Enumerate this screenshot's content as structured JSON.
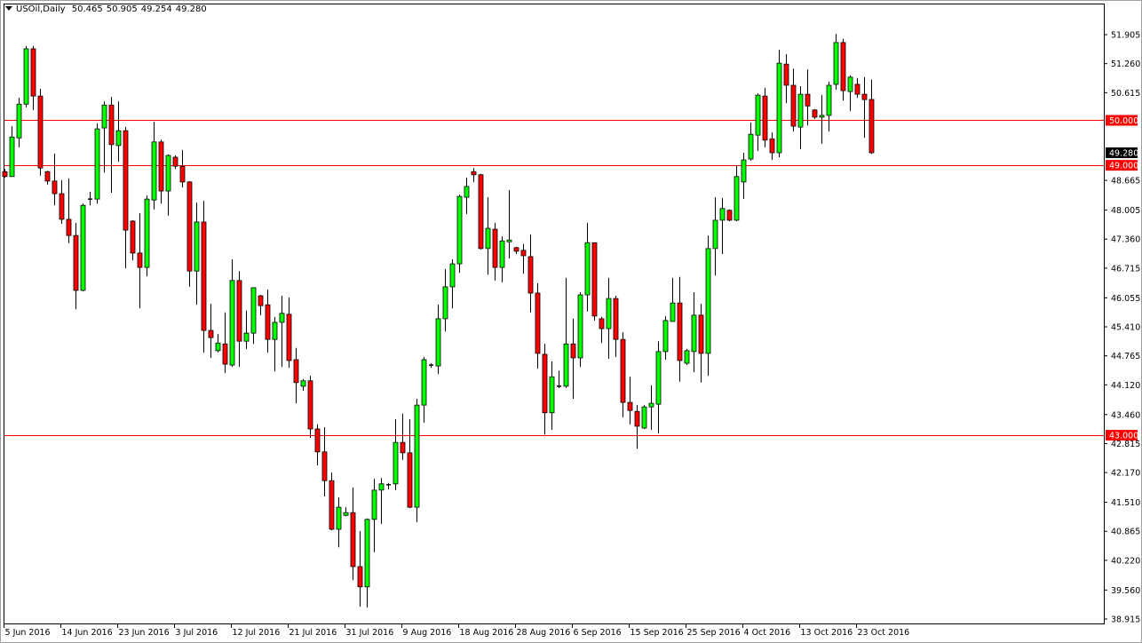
{
  "header": {
    "symbol": "USOil,Daily",
    "open": "50.465",
    "high": "50.905",
    "low": "49.254",
    "close": "49.280"
  },
  "colors": {
    "bull": "#00ff00",
    "bear": "#ff0000",
    "wick": "#000000",
    "level_line": "#ff0000",
    "level_label_bg": "#ff0000",
    "current_label_bg": "#000000"
  },
  "chart_data": {
    "type": "candlestick",
    "title": "USOil,Daily",
    "ylim": [
      38.915,
      51.905
    ],
    "grid": false,
    "y_ticks": [
      "51.905",
      "51.260",
      "50.615",
      "48.665",
      "48.005",
      "47.360",
      "46.715",
      "46.055",
      "45.410",
      "44.765",
      "44.120",
      "43.460",
      "42.815",
      "42.170",
      "41.510",
      "40.865",
      "40.220",
      "39.560",
      "38.915"
    ],
    "x_ticks": [
      {
        "bar": 0,
        "label": "5 Jun 2016"
      },
      {
        "bar": 8,
        "label": "14 Jun 2016"
      },
      {
        "bar": 16,
        "label": "23 Jun 2016"
      },
      {
        "bar": 24,
        "label": "3 Jul 2016"
      },
      {
        "bar": 32,
        "label": "12 Jul 2016"
      },
      {
        "bar": 40,
        "label": "21 Jul 2016"
      },
      {
        "bar": 48,
        "label": "31 Jul 2016"
      },
      {
        "bar": 56,
        "label": "9 Aug 2016"
      },
      {
        "bar": 64,
        "label": "18 Aug 2016"
      },
      {
        "bar": 72,
        "label": "28 Aug 2016"
      },
      {
        "bar": 80,
        "label": "6 Sep 2016"
      },
      {
        "bar": 88,
        "label": "15 Sep 2016"
      },
      {
        "bar": 96,
        "label": "25 Sep 2016"
      },
      {
        "bar": 104,
        "label": "4 Oct 2016"
      },
      {
        "bar": 112,
        "label": "13 Oct 2016"
      },
      {
        "bar": 120,
        "label": "23 Oct 2016"
      }
    ],
    "levels": [
      {
        "value": 50.0,
        "label": "50.000"
      },
      {
        "value": 49.0,
        "label": "49.000"
      },
      {
        "value": 43.0,
        "label": "43.000"
      }
    ],
    "current_price": {
      "value": 49.28,
      "label": "49.280"
    },
    "ohlc": [
      [
        48.86,
        48.92,
        48.73,
        48.75
      ],
      [
        48.75,
        49.87,
        48.75,
        49.63
      ],
      [
        49.61,
        50.5,
        49.4,
        50.36
      ],
      [
        50.36,
        51.65,
        50.29,
        51.59
      ],
      [
        51.59,
        51.65,
        50.23,
        50.54
      ],
      [
        50.54,
        50.7,
        48.77,
        48.94
      ],
      [
        48.86,
        48.88,
        48.57,
        48.65
      ],
      [
        48.65,
        49.26,
        48.11,
        48.37
      ],
      [
        48.37,
        48.67,
        47.7,
        47.8
      ],
      [
        47.8,
        48.71,
        47.27,
        47.44
      ],
      [
        47.44,
        47.72,
        45.8,
        46.22
      ],
      [
        46.22,
        48.15,
        46.2,
        48.11
      ],
      [
        48.25,
        48.41,
        48.11,
        48.25
      ],
      [
        48.25,
        49.93,
        48.15,
        49.81
      ],
      [
        49.83,
        50.42,
        48.84,
        50.34
      ],
      [
        50.34,
        50.52,
        48.39,
        49.46
      ],
      [
        49.44,
        50.42,
        49.08,
        49.77
      ],
      [
        49.77,
        49.85,
        46.71,
        47.56
      ],
      [
        47.76,
        47.78,
        46.89,
        47.05
      ],
      [
        47.05,
        47.94,
        45.82,
        46.73
      ],
      [
        46.73,
        48.33,
        46.53,
        48.25
      ],
      [
        48.23,
        49.97,
        48.02,
        49.52
      ],
      [
        49.52,
        49.57,
        48.15,
        48.43
      ],
      [
        48.43,
        49.24,
        47.88,
        49.22
      ],
      [
        49.18,
        49.22,
        48.92,
        48.98
      ],
      [
        48.98,
        49.34,
        48.51,
        48.63
      ],
      [
        48.63,
        48.65,
        46.3,
        46.65
      ],
      [
        46.65,
        48.17,
        45.9,
        47.74
      ],
      [
        47.74,
        48.21,
        44.84,
        45.33
      ],
      [
        45.33,
        45.92,
        44.72,
        45.17
      ],
      [
        44.88,
        45.25,
        44.84,
        45.05
      ],
      [
        45.03,
        45.73,
        44.38,
        44.58
      ],
      [
        44.56,
        46.91,
        44.52,
        46.44
      ],
      [
        46.44,
        46.65,
        44.52,
        45.09
      ],
      [
        45.09,
        45.77,
        44.92,
        45.27
      ],
      [
        45.27,
        46.28,
        45.03,
        46.28
      ],
      [
        46.1,
        46.12,
        45.67,
        45.88
      ],
      [
        45.9,
        46.24,
        44.84,
        45.13
      ],
      [
        45.13,
        45.63,
        44.42,
        45.51
      ],
      [
        45.51,
        46.1,
        44.52,
        45.71
      ],
      [
        45.69,
        46.06,
        44.5,
        44.66
      ],
      [
        44.68,
        44.94,
        43.71,
        44.17
      ],
      [
        44.09,
        44.25,
        43.99,
        44.21
      ],
      [
        44.21,
        44.32,
        42.94,
        43.14
      ],
      [
        43.14,
        43.24,
        42.33,
        42.63
      ],
      [
        42.63,
        43.18,
        41.64,
        41.99
      ],
      [
        41.99,
        42.17,
        40.89,
        40.91
      ],
      [
        40.91,
        41.62,
        40.51,
        41.4
      ],
      [
        41.22,
        41.4,
        41.2,
        41.28
      ],
      [
        41.28,
        41.84,
        39.78,
        40.08
      ],
      [
        40.08,
        40.87,
        39.19,
        39.63
      ],
      [
        39.63,
        41.15,
        39.17,
        41.13
      ],
      [
        41.13,
        42.03,
        40.4,
        41.78
      ],
      [
        41.78,
        42.05,
        41.03,
        41.92
      ],
      [
        41.9,
        41.94,
        41.8,
        41.9
      ],
      [
        41.92,
        43.36,
        41.78,
        42.84
      ],
      [
        42.84,
        43.48,
        42.45,
        42.61
      ],
      [
        42.61,
        43.36,
        41.38,
        41.4
      ],
      [
        41.4,
        43.81,
        41.07,
        43.67
      ],
      [
        43.67,
        44.74,
        43.28,
        44.68
      ],
      [
        44.56,
        44.6,
        44.5,
        44.56
      ],
      [
        44.54,
        45.9,
        44.36,
        45.59
      ],
      [
        45.59,
        46.69,
        45.31,
        46.3
      ],
      [
        46.3,
        46.91,
        45.82,
        46.81
      ],
      [
        46.81,
        48.35,
        46.61,
        48.31
      ],
      [
        48.29,
        48.73,
        47.92,
        48.53
      ],
      [
        48.86,
        48.94,
        48.63,
        48.79
      ],
      [
        48.79,
        48.81,
        47.13,
        47.15
      ],
      [
        47.15,
        48.29,
        46.57,
        47.6
      ],
      [
        47.58,
        47.72,
        46.44,
        46.73
      ],
      [
        46.73,
        47.42,
        46.4,
        47.32
      ],
      [
        47.3,
        48.45,
        46.93,
        47.34
      ],
      [
        47.17,
        47.19,
        47.03,
        47.09
      ],
      [
        47.11,
        47.25,
        46.59,
        46.99
      ],
      [
        46.97,
        47.46,
        45.73,
        46.16
      ],
      [
        46.16,
        46.38,
        44.48,
        44.82
      ],
      [
        44.8,
        45.03,
        43.02,
        43.5
      ],
      [
        43.5,
        44.64,
        43.12,
        44.3
      ],
      [
        44.09,
        44.44,
        44.05,
        44.09
      ],
      [
        44.09,
        46.5,
        44.05,
        45.03
      ],
      [
        45.03,
        45.59,
        43.81,
        44.72
      ],
      [
        44.72,
        46.18,
        44.52,
        46.12
      ],
      [
        46.12,
        47.72,
        45.75,
        47.28
      ],
      [
        47.28,
        47.28,
        45.55,
        45.65
      ],
      [
        45.59,
        45.63,
        45.05,
        45.37
      ],
      [
        45.37,
        46.5,
        44.7,
        46.04
      ],
      [
        46.04,
        46.1,
        44.74,
        45.13
      ],
      [
        45.13,
        45.29,
        43.4,
        43.73
      ],
      [
        43.73,
        44.3,
        43.24,
        43.55
      ],
      [
        43.53,
        43.67,
        42.7,
        43.2
      ],
      [
        43.16,
        43.67,
        43.14,
        43.63
      ],
      [
        43.63,
        44.11,
        43.12,
        43.71
      ],
      [
        43.69,
        45.09,
        43.04,
        44.86
      ],
      [
        44.86,
        45.65,
        44.68,
        45.55
      ],
      [
        45.53,
        46.5,
        45.53,
        45.94
      ],
      [
        45.94,
        46.52,
        44.19,
        44.66
      ],
      [
        44.6,
        44.92,
        44.56,
        44.88
      ],
      [
        44.86,
        46.18,
        44.4,
        45.67
      ],
      [
        45.67,
        45.92,
        44.17,
        44.82
      ],
      [
        44.82,
        47.44,
        44.32,
        47.15
      ],
      [
        47.15,
        48.29,
        46.55,
        47.78
      ],
      [
        47.78,
        48.27,
        47.03,
        48.04
      ],
      [
        48.0,
        48.02,
        47.76,
        47.78
      ],
      [
        47.78,
        49.0,
        47.76,
        48.75
      ],
      [
        48.63,
        49.28,
        48.25,
        49.12
      ],
      [
        49.14,
        49.95,
        49.1,
        49.69
      ],
      [
        49.67,
        50.6,
        49.32,
        50.56
      ],
      [
        50.54,
        50.72,
        49.4,
        49.56
      ],
      [
        49.59,
        49.73,
        49.12,
        49.28
      ],
      [
        49.28,
        51.57,
        49.18,
        51.27
      ],
      [
        51.25,
        51.47,
        50.38,
        50.78
      ],
      [
        50.78,
        51.15,
        49.75,
        49.87
      ],
      [
        49.85,
        50.76,
        49.36,
        50.58
      ],
      [
        50.58,
        51.13,
        49.89,
        50.32
      ],
      [
        50.23,
        50.25,
        50.03,
        50.07
      ],
      [
        50.07,
        50.56,
        49.48,
        50.11
      ],
      [
        50.11,
        50.86,
        49.75,
        50.78
      ],
      [
        50.8,
        51.92,
        50.68,
        51.73
      ],
      [
        51.73,
        51.81,
        50.44,
        50.66
      ],
      [
        50.64,
        51.0,
        50.21,
        50.96
      ],
      [
        50.8,
        50.94,
        50.5,
        50.58
      ],
      [
        50.58,
        50.96,
        49.61,
        50.46
      ],
      [
        50.465,
        50.905,
        49.254,
        49.28
      ]
    ]
  }
}
